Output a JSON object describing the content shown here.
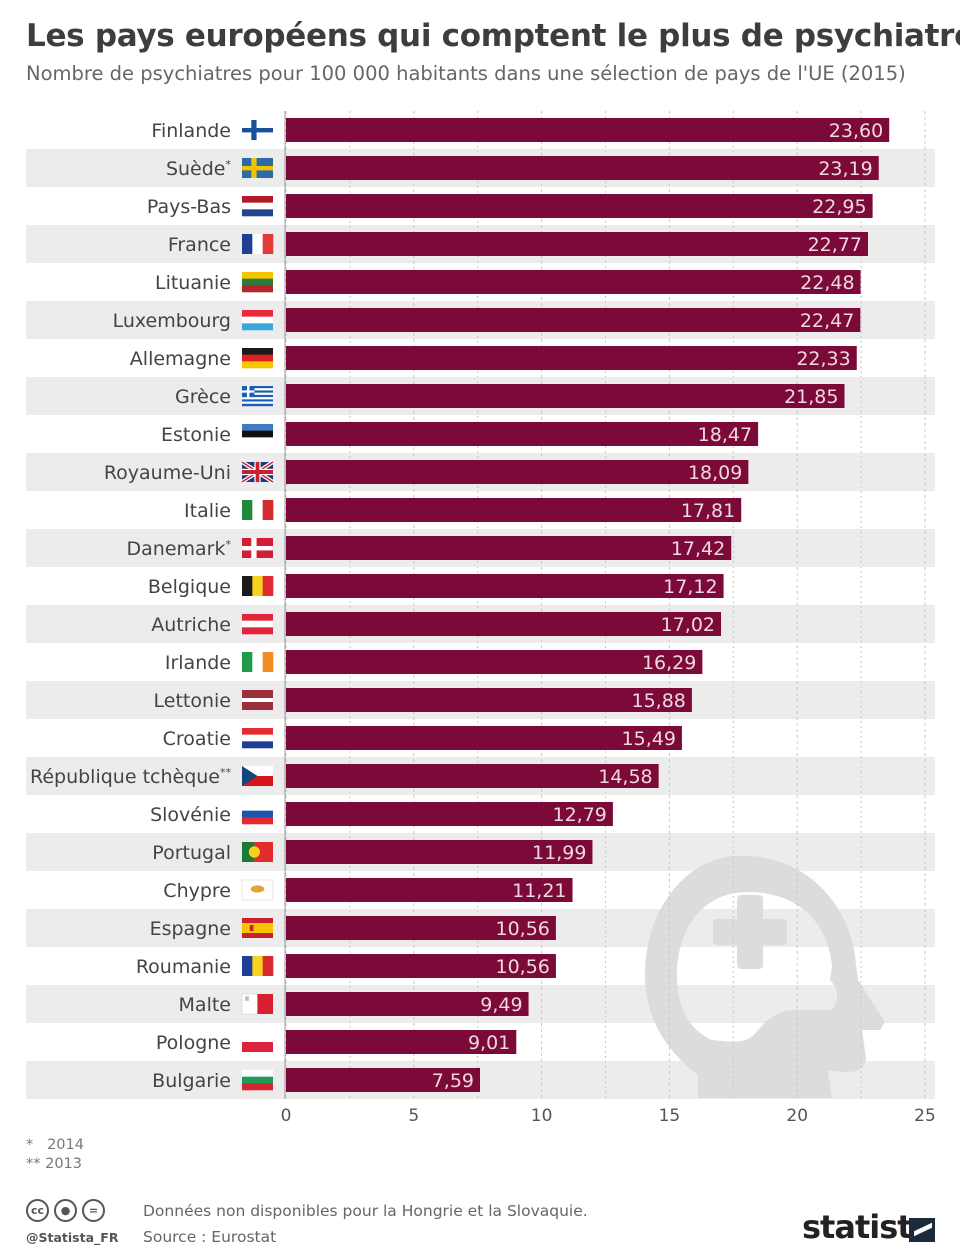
{
  "header": {
    "title": "Les pays européens qui comptent le plus de psychiatres",
    "subtitle": "Nombre de psychiatres pour 100 000 habitants dans une sélection de pays de l'UE (2015)"
  },
  "chart_data": {
    "type": "bar",
    "orientation": "horizontal",
    "categories": [
      "Finlande",
      "Suède*",
      "Pays-Bas",
      "France",
      "Lituanie",
      "Luxembourg",
      "Allemagne",
      "Grèce",
      "Estonie",
      "Royaume-Uni",
      "Italie",
      "Danemark*",
      "Belgique",
      "Autriche",
      "Irlande",
      "Lettonie",
      "Croatie",
      "République tchèque**",
      "Slovénie",
      "Portugal",
      "Chypre",
      "Espagne",
      "Roumanie",
      "Malte",
      "Pologne",
      "Bulgarie"
    ],
    "values": [
      23.6,
      23.19,
      22.95,
      22.77,
      22.48,
      22.47,
      22.33,
      21.85,
      18.47,
      18.09,
      17.81,
      17.42,
      17.12,
      17.02,
      16.29,
      15.88,
      15.49,
      14.58,
      12.79,
      11.99,
      11.21,
      10.56,
      10.56,
      9.49,
      9.01,
      7.59
    ],
    "value_labels": [
      "23,60",
      "23,19",
      "22,95",
      "22,77",
      "22,48",
      "22,47",
      "22,33",
      "21,85",
      "18,47",
      "18,09",
      "17,81",
      "17,42",
      "17,12",
      "17,02",
      "16,29",
      "15,88",
      "15,49",
      "14,58",
      "12,79",
      "11,99",
      "11,21",
      "10,56",
      "10,56",
      "9,49",
      "9,01",
      "7,59"
    ],
    "xlim": [
      0,
      25
    ],
    "xticks": [
      0,
      5,
      10,
      15,
      20,
      25
    ],
    "grid": true,
    "bar_color": "#7b0a38",
    "label_color": "#f0d8e0",
    "stripe_color": "#ececec"
  },
  "flags": [
    {
      "name": "finland-flag",
      "type": "nordic",
      "colors": [
        "#ffffff",
        "#1a4f9c"
      ]
    },
    {
      "name": "sweden-flag",
      "type": "nordic",
      "colors": [
        "#2e6aa8",
        "#f4c300"
      ]
    },
    {
      "name": "netherlands-flag",
      "type": "h3",
      "colors": [
        "#ae1c28",
        "#ffffff",
        "#21468b"
      ]
    },
    {
      "name": "france-flag",
      "type": "v3",
      "colors": [
        "#1d3f94",
        "#ffffff",
        "#e23b3b"
      ]
    },
    {
      "name": "lithuania-flag",
      "type": "h3",
      "colors": [
        "#f6c400",
        "#2d7a3a",
        "#b7252c"
      ]
    },
    {
      "name": "luxembourg-flag",
      "type": "h3",
      "colors": [
        "#ea2a3b",
        "#ffffff",
        "#3aa7dd"
      ]
    },
    {
      "name": "germany-flag",
      "type": "h3",
      "colors": [
        "#1a1a1a",
        "#dd2020",
        "#f7c600"
      ]
    },
    {
      "name": "greece-flag",
      "type": "greece",
      "colors": [
        "#1a5fb4",
        "#ffffff"
      ]
    },
    {
      "name": "estonia-flag",
      "type": "h3",
      "colors": [
        "#3f7cc4",
        "#111111",
        "#ffffff"
      ]
    },
    {
      "name": "uk-flag",
      "type": "uk",
      "colors": [
        "#1d3b7a",
        "#ffffff",
        "#c8202f"
      ]
    },
    {
      "name": "italy-flag",
      "type": "v3",
      "colors": [
        "#1f8a3a",
        "#ffffff",
        "#d32a2f"
      ]
    },
    {
      "name": "denmark-flag",
      "type": "nordic",
      "colors": [
        "#d31d35",
        "#ffffff"
      ]
    },
    {
      "name": "belgium-flag",
      "type": "v3",
      "colors": [
        "#1a1a1a",
        "#f7d21f",
        "#e02b30"
      ]
    },
    {
      "name": "austria-flag",
      "type": "h3",
      "colors": [
        "#e0263a",
        "#ffffff",
        "#e0263a"
      ]
    },
    {
      "name": "ireland-flag",
      "type": "v3",
      "colors": [
        "#229a4a",
        "#ffffff",
        "#f28b24"
      ]
    },
    {
      "name": "latvia-flag",
      "type": "latvia",
      "colors": [
        "#9e3039",
        "#ffffff"
      ]
    },
    {
      "name": "croatia-flag",
      "type": "h3",
      "colors": [
        "#e22b32",
        "#ffffff",
        "#1f3f94"
      ]
    },
    {
      "name": "czech-flag",
      "type": "czech",
      "colors": [
        "#ffffff",
        "#d7141a",
        "#11457e"
      ]
    },
    {
      "name": "slovenia-flag",
      "type": "h3",
      "colors": [
        "#ffffff",
        "#1c54b3",
        "#e02a2f"
      ]
    },
    {
      "name": "portugal-flag",
      "type": "portugal",
      "colors": [
        "#1c7a34",
        "#e22b2b",
        "#f5d21c"
      ]
    },
    {
      "name": "cyprus-flag",
      "type": "cyprus",
      "colors": [
        "#ffffff",
        "#e3a23a"
      ]
    },
    {
      "name": "spain-flag",
      "type": "spain",
      "colors": [
        "#c8202f",
        "#f6c400"
      ]
    },
    {
      "name": "romania-flag",
      "type": "v3",
      "colors": [
        "#1a3f94",
        "#f7d21f",
        "#d92a2f"
      ]
    },
    {
      "name": "malta-flag",
      "type": "malta",
      "colors": [
        "#ffffff",
        "#d6202f"
      ]
    },
    {
      "name": "poland-flag",
      "type": "h2",
      "colors": [
        "#ffffff",
        "#dc233c"
      ]
    },
    {
      "name": "bulgaria-flag",
      "type": "h3",
      "colors": [
        "#ffffff",
        "#1f9a5a",
        "#d6262d"
      ]
    }
  ],
  "footnotes": [
    {
      "marker": "*",
      "text": "2014"
    },
    {
      "marker": "**",
      "text": "2013"
    }
  ],
  "footer": {
    "note": "Données non disponibles pour la Hongrie et la Slovaquie.",
    "source": "Source : Eurostat",
    "handle": "@Statista_FR",
    "brand": "statista",
    "cc_icons": [
      "cc",
      "by",
      "nd"
    ]
  }
}
